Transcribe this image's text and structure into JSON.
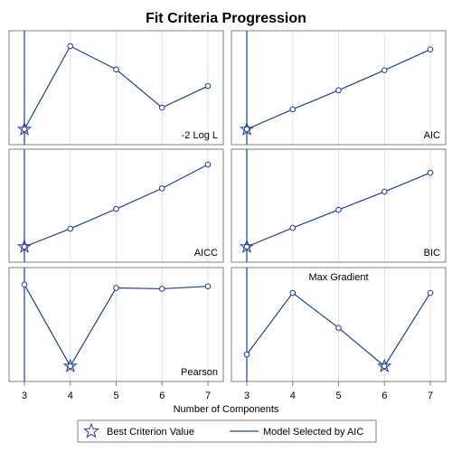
{
  "chart_data": {
    "type": "line",
    "title": "Fit Criteria Progression",
    "xlabel": "Number of Components",
    "x": [
      3,
      4,
      5,
      6,
      7
    ],
    "x_ticks": [
      "3",
      "4",
      "5",
      "6",
      "7"
    ],
    "selected_components": 3,
    "panels": [
      {
        "name": "-2 Log L",
        "values": [
          0.0,
          1.0,
          0.72,
          0.26,
          0.52
        ],
        "best_index": 0,
        "label_position": "bottom-right"
      },
      {
        "name": "AIC",
        "values": [
          0.0,
          0.24,
          0.47,
          0.71,
          0.96
        ],
        "best_index": 0,
        "label_position": "bottom-right"
      },
      {
        "name": "AICC",
        "values": [
          0.0,
          0.22,
          0.46,
          0.71,
          1.0
        ],
        "best_index": 0,
        "label_position": "bottom-right"
      },
      {
        "name": "BIC",
        "values": [
          0.0,
          0.23,
          0.45,
          0.67,
          0.9
        ],
        "best_index": 0,
        "label_position": "bottom-right"
      },
      {
        "name": "Pearson",
        "values": [
          0.98,
          0.0,
          0.94,
          0.93,
          0.96
        ],
        "best_index": 1,
        "label_position": "bottom-right"
      },
      {
        "name": "Max Gradient",
        "values": [
          0.14,
          0.88,
          0.46,
          0.0,
          0.88
        ],
        "best_index": 3,
        "label_position": "top-center"
      }
    ],
    "legend": {
      "placement": "bottom",
      "items": [
        {
          "label": "Best Criterion Value",
          "symbol": "star"
        },
        {
          "label": "Model Selected by AIC",
          "symbol": "line"
        }
      ]
    },
    "colors": {
      "series": "#1f3d99",
      "gridline": "#e0e0e0",
      "frame": "#808080"
    }
  }
}
